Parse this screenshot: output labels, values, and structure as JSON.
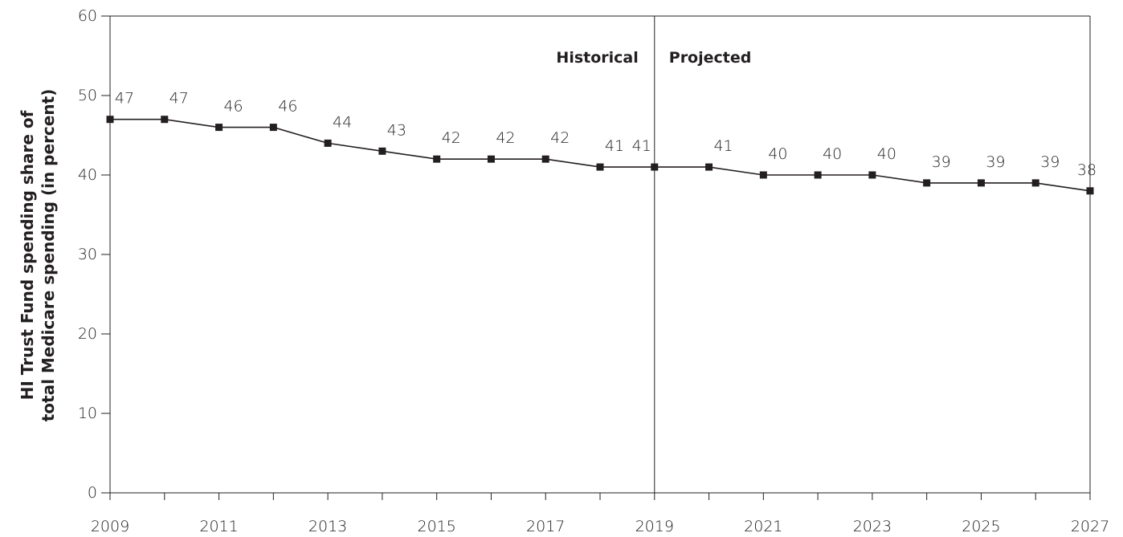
{
  "chart_data": {
    "type": "line",
    "title": "",
    "xlabel": "",
    "ylabel_lines": [
      "HI Trust Fund spending share of",
      "total Medicare spending (in percent)"
    ],
    "x": [
      2009,
      2010,
      2011,
      2012,
      2013,
      2014,
      2015,
      2016,
      2017,
      2018,
      2019,
      2020,
      2021,
      2022,
      2023,
      2024,
      2025,
      2026,
      2027
    ],
    "series": [
      {
        "values": [
          47,
          47,
          46,
          46,
          44,
          43,
          42,
          42,
          42,
          41,
          41,
          41,
          40,
          40,
          40,
          39,
          39,
          39,
          38
        ],
        "color": "#231f20",
        "marker": "square"
      }
    ],
    "data_labels": [
      "47",
      "47",
      "46",
      "46",
      "44",
      "43",
      "42",
      "42",
      "42",
      "41",
      "41",
      "41",
      "40",
      "40",
      "40",
      "39",
      "39",
      "39",
      "38"
    ],
    "xlim": [
      2009,
      2027
    ],
    "ylim": [
      0,
      60
    ],
    "xticks": [
      2009,
      2011,
      2013,
      2015,
      2017,
      2019,
      2021,
      2023,
      2025,
      2027
    ],
    "xtick_labels": [
      "2009",
      "2011",
      "2013",
      "2015",
      "2017",
      "2019",
      "2021",
      "2023",
      "2025",
      "2027"
    ],
    "yticks": [
      0,
      10,
      20,
      30,
      40,
      50,
      60
    ],
    "ytick_labels": [
      "0",
      "10",
      "20",
      "30",
      "40",
      "50",
      "60"
    ],
    "divider": {
      "x": 2019,
      "left_label": "Historical",
      "right_label": "Projected"
    },
    "grid": false,
    "legend": "none"
  }
}
